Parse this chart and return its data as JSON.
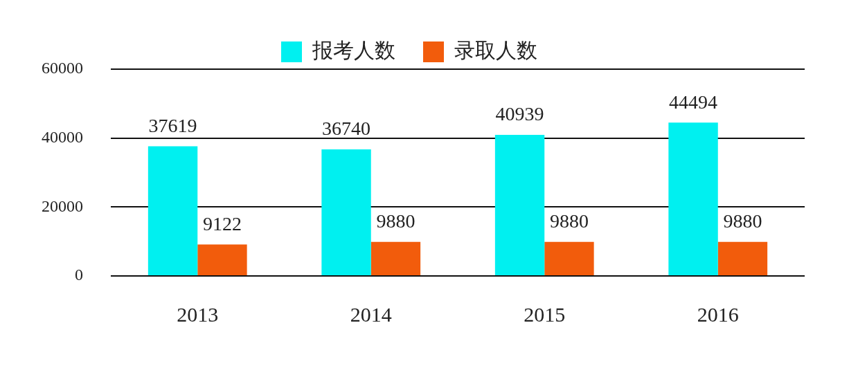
{
  "chart_data": {
    "type": "bar",
    "categories": [
      "2013",
      "2014",
      "2015",
      "2016"
    ],
    "series": [
      {
        "name": "报考人数",
        "color": "#00f0f0",
        "values": [
          37619,
          36740,
          40939,
          44494
        ]
      },
      {
        "name": "录取人数",
        "color": "#f25c0c",
        "values": [
          9122,
          9880,
          9880,
          9880
        ]
      }
    ],
    "ylim": [
      0,
      60000
    ],
    "yticks": [
      0,
      20000,
      40000,
      60000
    ],
    "grid": "y",
    "legend": "top",
    "data_labels": true
  }
}
